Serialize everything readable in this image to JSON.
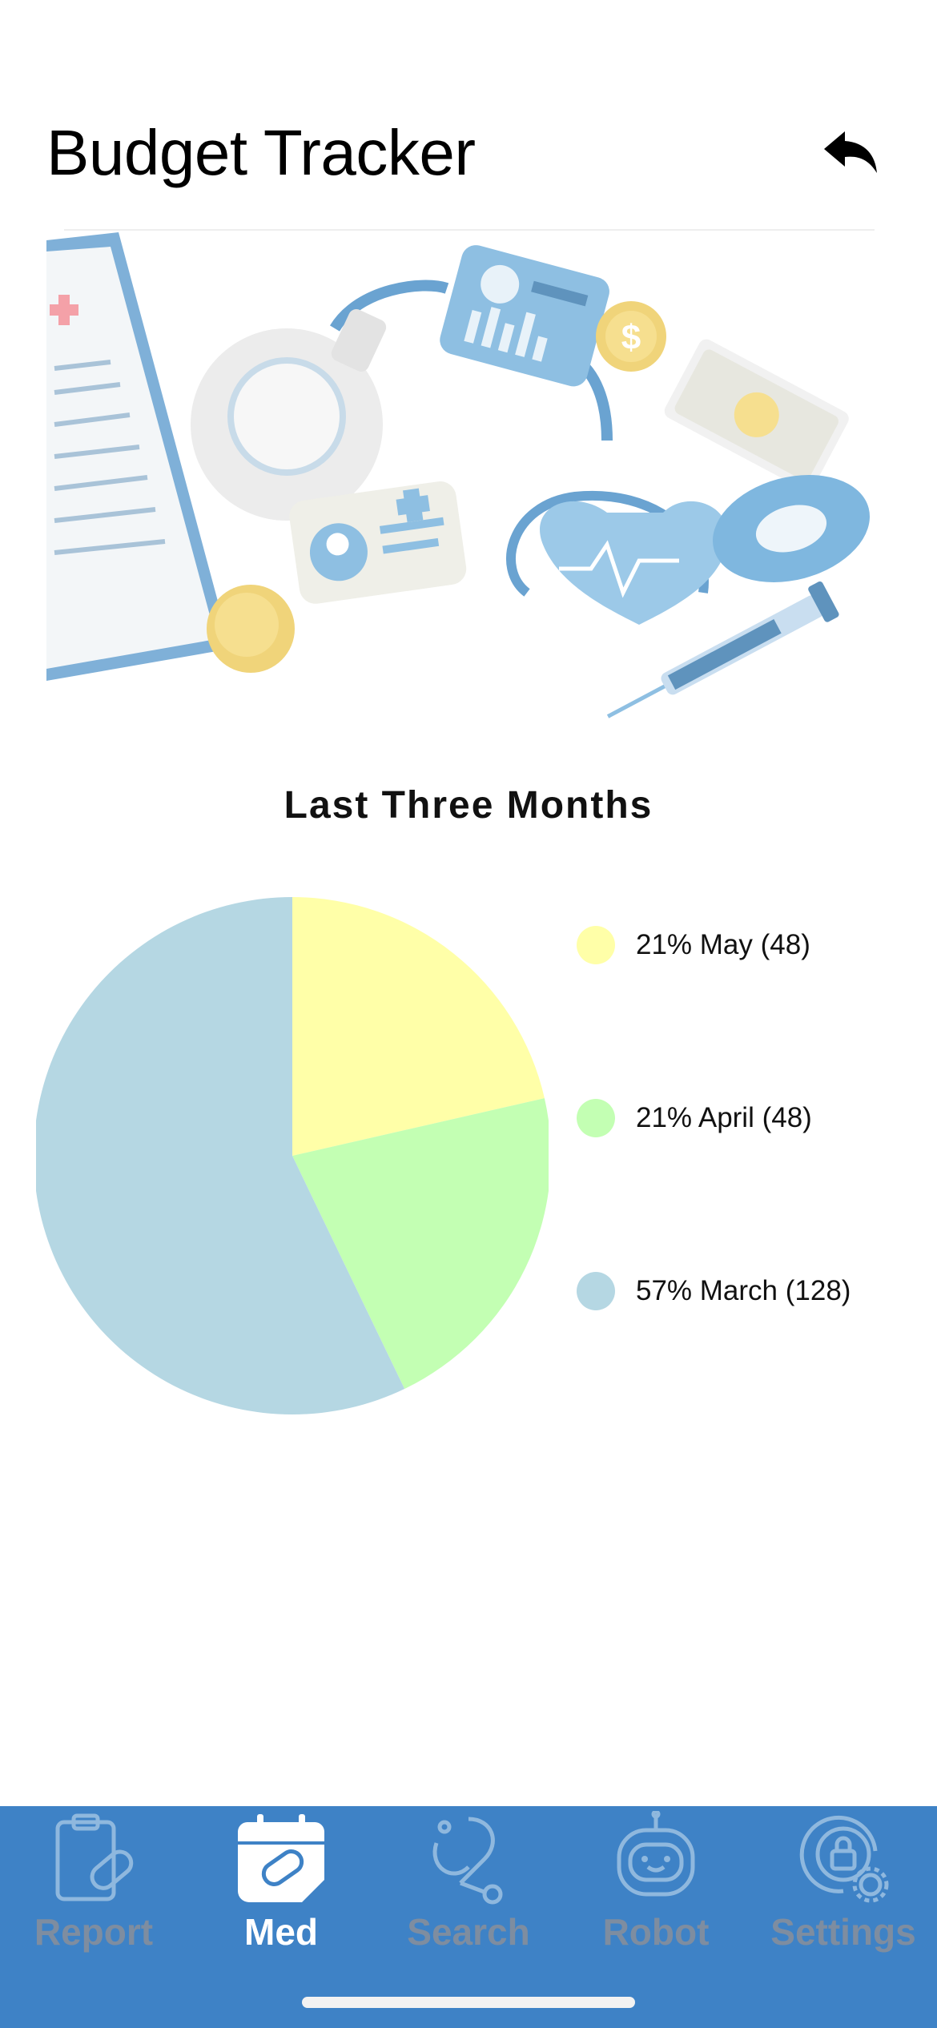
{
  "header": {
    "title": "Budget Tracker",
    "back_icon": "reply-arrow-icon"
  },
  "hero": {
    "icon": "medical-finance-illustration"
  },
  "chart": {
    "title": "Last Three Months"
  },
  "chart_data": {
    "type": "pie",
    "title": "Last Three Months",
    "slices": [
      {
        "label": "May",
        "value": 48,
        "percent": "21%",
        "color": "#ffffa8"
      },
      {
        "label": "April",
        "value": 48,
        "percent": "21%",
        "color": "#c3ffb3"
      },
      {
        "label": "March",
        "value": 128,
        "percent": "57%",
        "color": "#b5d7e3"
      }
    ],
    "legend": [
      "21% May (48)",
      "21% April (48)",
      "57% March (128)"
    ],
    "legend_position": "right"
  },
  "tabbar": {
    "background": "#3e82c6",
    "tabs": [
      {
        "label": "Report",
        "icon": "clipboard-pill-icon",
        "active": false
      },
      {
        "label": "Med",
        "icon": "calendar-pill-icon",
        "active": true
      },
      {
        "label": "Search",
        "icon": "stethoscope-icon",
        "active": false
      },
      {
        "label": "Robot",
        "icon": "robot-icon",
        "active": false
      },
      {
        "label": "Settings",
        "icon": "lock-gear-icon",
        "active": false
      }
    ]
  }
}
